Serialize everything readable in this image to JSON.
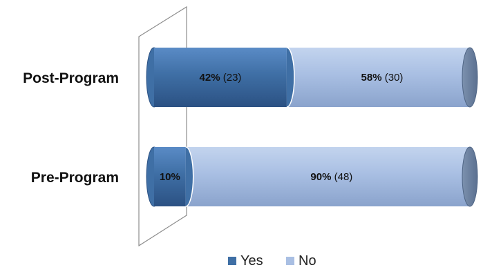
{
  "chart_data": {
    "type": "bar",
    "orientation": "horizontal",
    "stacked": true,
    "categories": [
      "Post-Program",
      "Pre-Program"
    ],
    "series": [
      {
        "name": "Yes",
        "percent": [
          42,
          10
        ],
        "counts": [
          23,
          null
        ],
        "labels": [
          "42%",
          "10%"
        ],
        "count_labels": [
          "(23)",
          ""
        ]
      },
      {
        "name": "No",
        "percent": [
          58,
          90
        ],
        "counts": [
          30,
          48
        ],
        "labels": [
          "58%",
          "90%"
        ],
        "count_labels": [
          "(30)",
          "(48)"
        ]
      }
    ],
    "xlim": [
      0,
      100
    ],
    "legend": {
      "position": "bottom",
      "items": [
        "Yes",
        "No"
      ]
    },
    "colors": {
      "Yes": "#3f6fa5",
      "No": "#a9bfe3"
    },
    "grid": false,
    "title": "",
    "xlabel": "",
    "ylabel": ""
  }
}
